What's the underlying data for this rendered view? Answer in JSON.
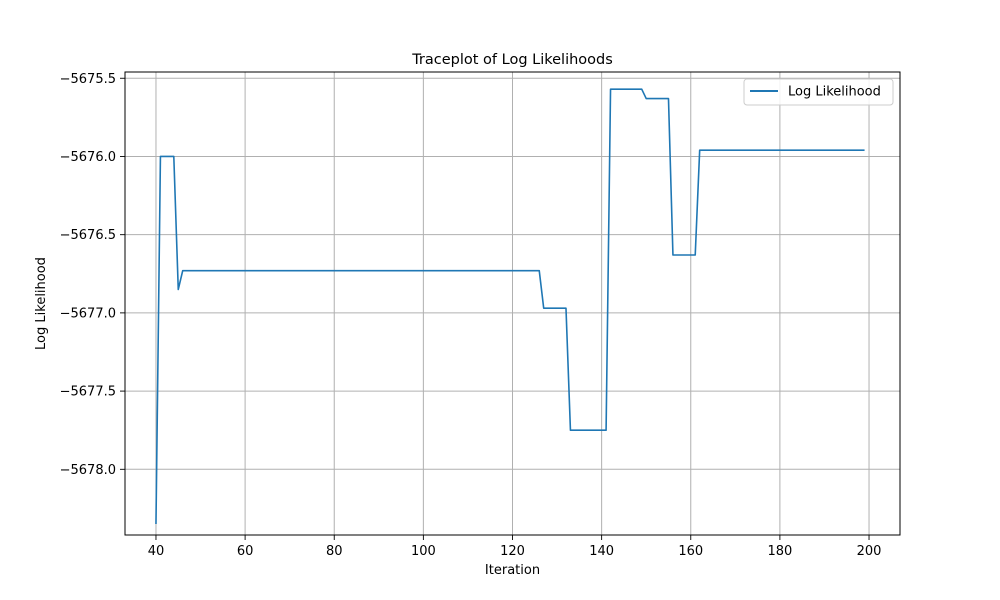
{
  "chart_data": {
    "type": "line",
    "title": "Traceplot of Log Likelihoods",
    "xlabel": "Iteration",
    "ylabel": "Log Likelihood",
    "xlim": [
      33.05,
      206.95
    ],
    "ylim": [
      -5678.42,
      -5675.46
    ],
    "xticks": [
      40,
      60,
      80,
      100,
      120,
      140,
      160,
      180,
      200
    ],
    "yticks": [
      -5678.0,
      -5677.5,
      -5677.0,
      -5676.5,
      -5676.0,
      -5675.5
    ],
    "ytick_labels": [
      "−5678.0",
      "−5677.5",
      "−5677.0",
      "−5676.5",
      "−5676.0",
      "−5675.5"
    ],
    "grid": true,
    "legend_position": "top-right",
    "colors": {
      "series": "#1f77b4"
    },
    "series": [
      {
        "name": "Log Likelihood",
        "x": [
          40,
          41,
          44,
          45,
          46,
          126,
          127,
          132,
          133,
          141,
          142,
          149,
          150,
          155,
          156,
          161,
          162,
          199
        ],
        "y": [
          -5678.35,
          -5676.0,
          -5676.0,
          -5676.85,
          -5676.73,
          -5676.73,
          -5676.97,
          -5676.97,
          -5677.75,
          -5677.75,
          -5675.57,
          -5675.57,
          -5675.63,
          -5675.63,
          -5676.63,
          -5676.63,
          -5675.96,
          -5675.96
        ]
      }
    ]
  }
}
